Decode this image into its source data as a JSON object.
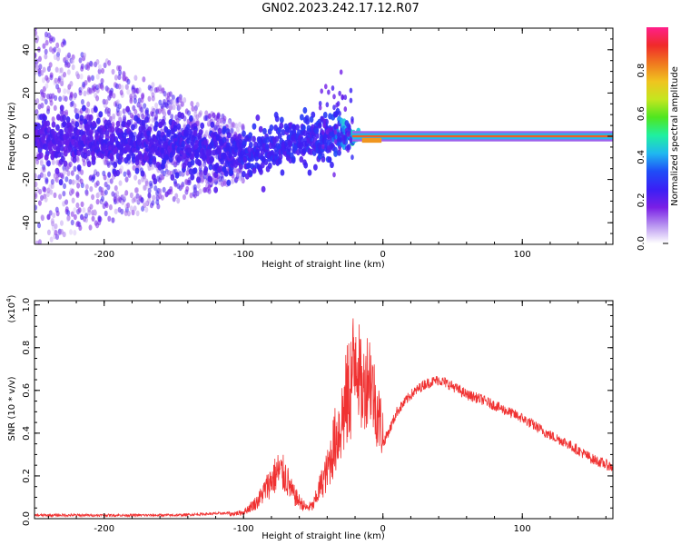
{
  "title": "GN02.2023.242.17.12.R07",
  "chart_data": [
    {
      "type": "heatmap",
      "xlabel": "Height of straight line (km)",
      "ylabel": "Frequency (Hz)",
      "xlim": [
        -250,
        165
      ],
      "ylim": [
        -50,
        50
      ],
      "x_ticks": [
        -200,
        -100,
        0,
        100
      ],
      "x_tick_labels": [
        "-200",
        "-100",
        "0",
        "100"
      ],
      "y_ticks": [
        -40,
        -20,
        0,
        20,
        40
      ],
      "y_tick_labels": [
        "-40",
        "-20",
        "0",
        "20",
        "40"
      ],
      "colorbar": {
        "label": "Normalized spectral amplitude",
        "range": [
          0.0,
          1.0
        ],
        "ticks": [
          0.0,
          0.2,
          0.4,
          0.6,
          0.8
        ],
        "tick_labels": [
          "0.0",
          "0.2",
          "0.4",
          "0.6",
          "0.8"
        ],
        "colors": [
          "#ffffff",
          "#b894f0",
          "#7a1fe6",
          "#3a1ff5",
          "#1f4df7",
          "#1fb8f0",
          "#1ff0a0",
          "#4fe61f",
          "#c4e61f",
          "#f0c41f",
          "#f0781f",
          "#f02a2a",
          "#ff1f8a"
        ]
      },
      "description_points": [
        {
          "x": -250,
          "center_freq": 0,
          "spread": 48,
          "amp": 0.25
        },
        {
          "x": -100,
          "center_freq": -8,
          "spread": 12,
          "amp": 0.35
        },
        {
          "x": -40,
          "center_freq": 0,
          "spread": 15,
          "amp": 0.4
        },
        {
          "x": -20,
          "center_freq": 0,
          "spread": 2,
          "amp": 0.9
        },
        {
          "x": 0,
          "center_freq": 0,
          "spread": 1,
          "amp": 0.85
        },
        {
          "x": 165,
          "center_freq": 0,
          "spread": 1,
          "amp": 0.85
        }
      ],
      "grid": false
    },
    {
      "type": "line",
      "xlabel": "Height of straight line (km)",
      "ylabel": "SNR (10 * v/v)",
      "y_multiplier_label": "(x10",
      "y_multiplier_exp": "4",
      "y_multiplier_close": ")",
      "xlim": [
        -250,
        165
      ],
      "ylim": [
        0,
        1.02
      ],
      "x_ticks": [
        -200,
        -100,
        0,
        100
      ],
      "x_tick_labels": [
        "-200",
        "-100",
        "0",
        "100"
      ],
      "y_ticks": [
        0.0,
        0.2,
        0.4,
        0.6,
        0.8,
        1.0
      ],
      "y_tick_labels": [
        "0.0",
        "0.2",
        "0.4",
        "0.6",
        "0.8",
        "1.0"
      ],
      "line_color": "#f03232",
      "series": [
        {
          "x": [
            -250,
            -200,
            -150,
            -110,
            -100,
            -90,
            -80,
            -75,
            -70,
            -65,
            -60,
            -55,
            -50,
            -45,
            -40,
            -35,
            -30,
            -25,
            -20,
            -15,
            -10,
            -5,
            0,
            5,
            10,
            20,
            30,
            40,
            50,
            60,
            70,
            80,
            90,
            100,
            110,
            120,
            130,
            140,
            150,
            165
          ],
          "y": [
            0.01,
            0.01,
            0.01,
            0.02,
            0.03,
            0.08,
            0.18,
            0.22,
            0.2,
            0.12,
            0.08,
            0.05,
            0.06,
            0.15,
            0.22,
            0.35,
            0.45,
            0.58,
            0.72,
            0.5,
            0.6,
            0.45,
            0.35,
            0.42,
            0.5,
            0.58,
            0.63,
            0.65,
            0.62,
            0.58,
            0.56,
            0.53,
            0.5,
            0.47,
            0.43,
            0.39,
            0.36,
            0.32,
            0.28,
            0.24
          ]
        }
      ],
      "grid": false
    }
  ]
}
